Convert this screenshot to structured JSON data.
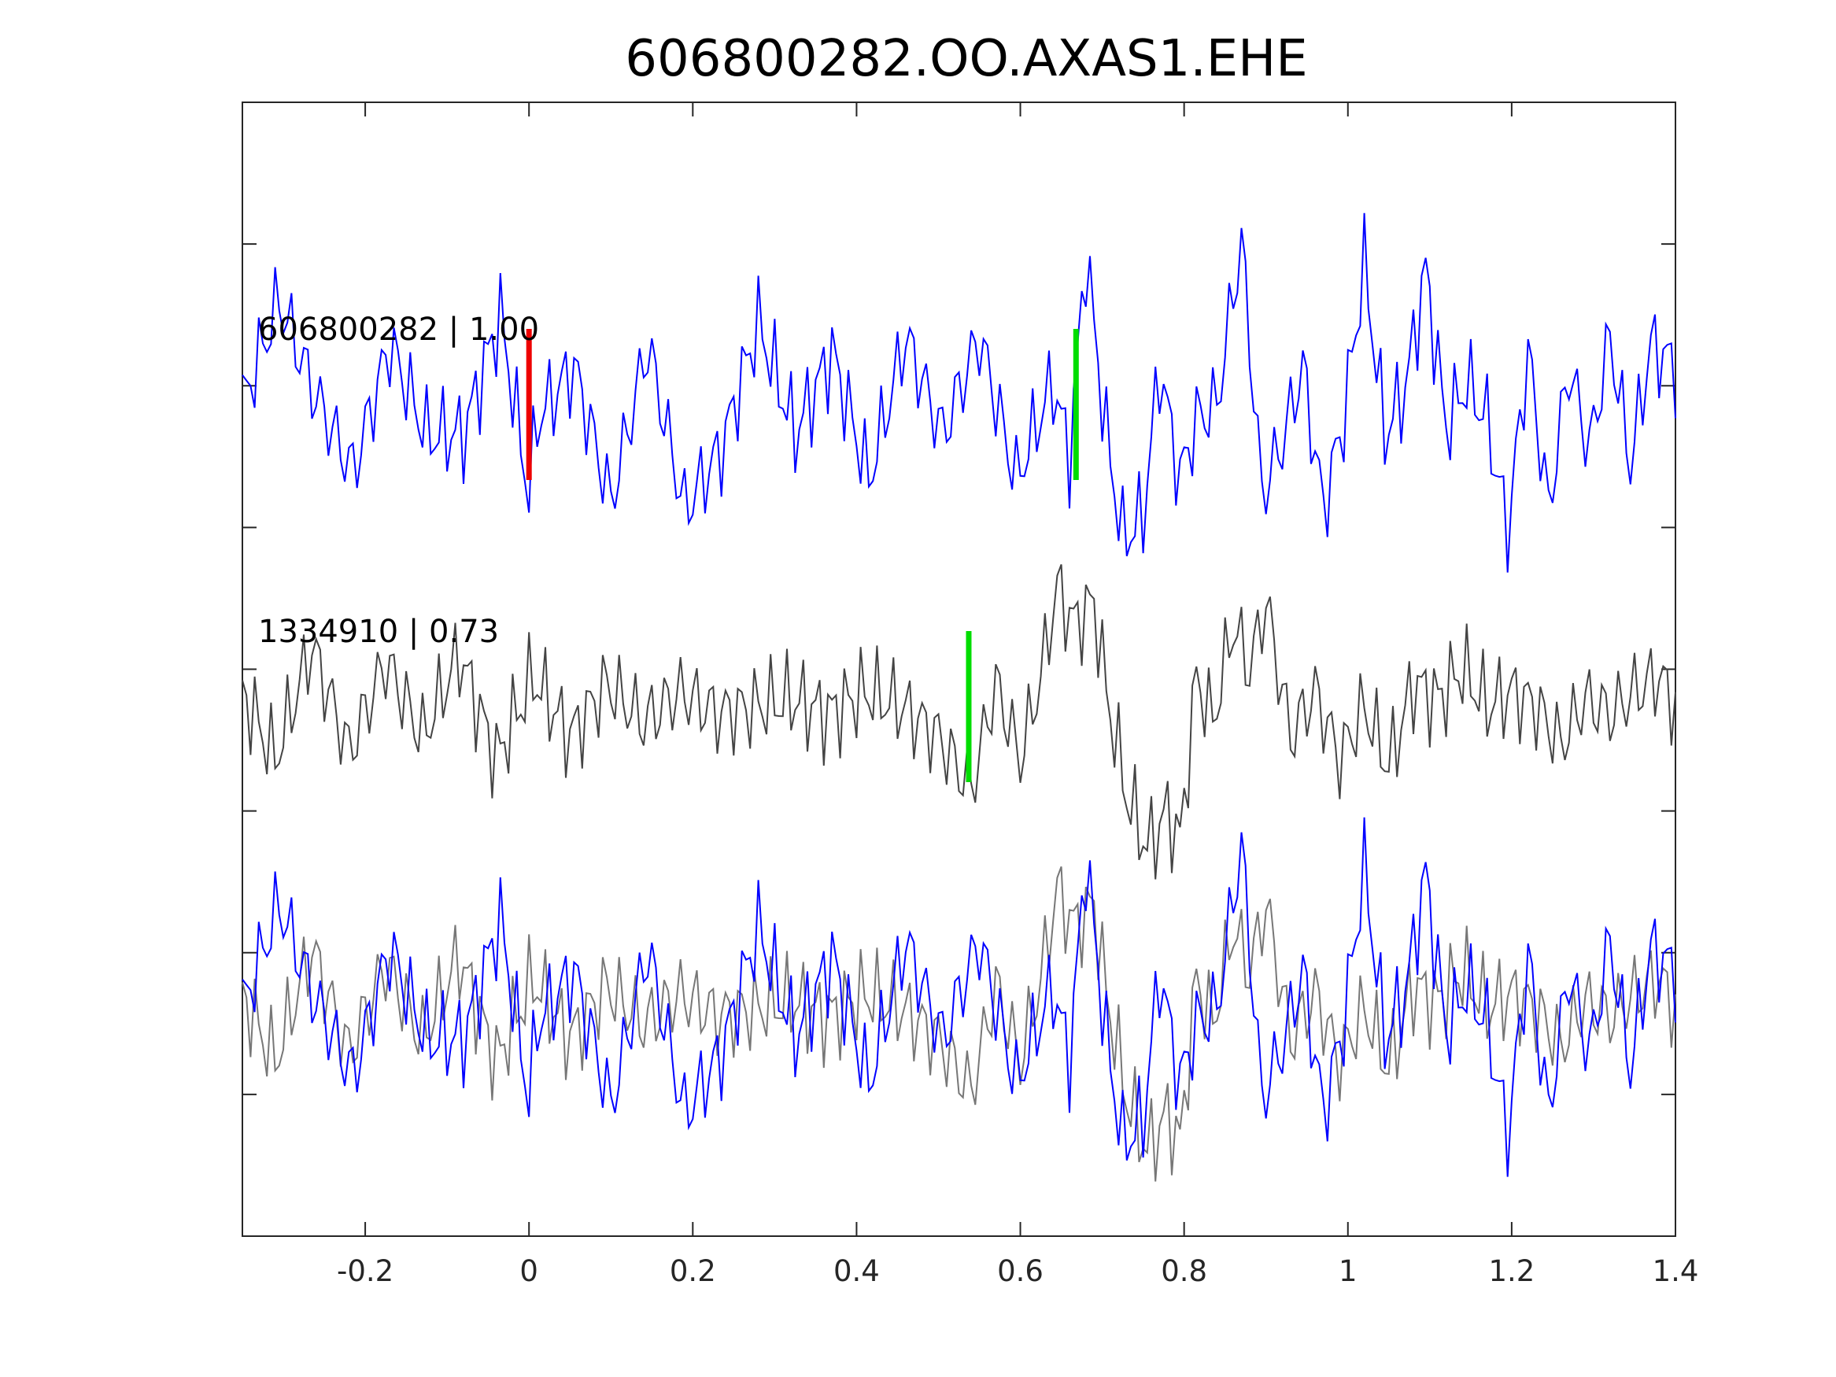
{
  "title": "606800282.OO.AXAS1.EHE",
  "chart_data": {
    "type": "line",
    "title": "606800282.OO.AXAS1.EHE",
    "xlabel": "",
    "ylabel": "",
    "xlim": [
      -0.35,
      1.4
    ],
    "x_ticks": [
      -0.2,
      0,
      0.2,
      0.4,
      0.6,
      0.8,
      1,
      1.2,
      1.4
    ],
    "x_tick_labels": [
      "-0.2",
      "0",
      "0.2",
      "0.4",
      "0.6",
      "0.8",
      "1",
      "1.2",
      "1.4"
    ],
    "y_ticks_count": 7,
    "grid": false,
    "sample_interval": 0.005,
    "series": [
      {
        "name": "606800282",
        "label": "606800282 | 1.00",
        "color": "#0000ff",
        "marker_red_x": 0.0,
        "marker_green_x": 0.668,
        "x": [
          -0.35,
          -0.305,
          -0.26,
          -0.215,
          -0.17,
          -0.125,
          -0.08,
          -0.035,
          0.0,
          0.01,
          0.055,
          0.1,
          0.145,
          0.19,
          0.235,
          0.28,
          0.325,
          0.37,
          0.415,
          0.46,
          0.505,
          0.55,
          0.595,
          0.64,
          0.66,
          0.68,
          0.705,
          0.725,
          0.75,
          0.77,
          0.795,
          0.815,
          0.84,
          0.87,
          0.895,
          0.92,
          0.945,
          0.97,
          0.995,
          1.02,
          1.045,
          1.07,
          1.095,
          1.12,
          1.145,
          1.17,
          1.195,
          1.22,
          1.245,
          1.27,
          1.295,
          1.32,
          1.345,
          1.37,
          1.4
        ],
        "y": [
          0.0,
          0.7,
          0.05,
          -0.45,
          0.4,
          -0.2,
          -0.2,
          0.6,
          -0.6,
          -0.1,
          0.25,
          -0.65,
          0.4,
          -0.7,
          -0.3,
          0.55,
          -0.2,
          0.35,
          -0.5,
          0.45,
          -0.2,
          0.45,
          -0.5,
          0.15,
          -0.35,
          1.0,
          -0.2,
          -0.9,
          -0.75,
          0.25,
          -0.5,
          -0.1,
          0.0,
          1.1,
          -0.6,
          -0.25,
          0.25,
          -0.7,
          -0.1,
          0.95,
          -0.2,
          0.1,
          0.9,
          -0.15,
          0.15,
          -0.1,
          -0.85,
          0.35,
          -0.7,
          0.25,
          -0.3,
          0.45,
          -0.4,
          0.4,
          0.25
        ]
      },
      {
        "name": "1334910",
        "label": "1334910 | 0.73",
        "color": "#555555",
        "marker_green_x": 0.537,
        "x": [
          -0.35,
          -0.31,
          -0.265,
          -0.22,
          -0.175,
          -0.13,
          -0.085,
          -0.04,
          0.005,
          0.05,
          0.095,
          0.14,
          0.185,
          0.23,
          0.275,
          0.32,
          0.365,
          0.41,
          0.455,
          0.5,
          0.54,
          0.57,
          0.6,
          0.625,
          0.645,
          0.665,
          0.69,
          0.705,
          0.73,
          0.755,
          0.78,
          0.795,
          0.815,
          0.835,
          0.86,
          0.88,
          0.9,
          0.93,
          0.96,
          0.99,
          1.02,
          1.05,
          1.08,
          1.11,
          1.14,
          1.17,
          1.2,
          1.23,
          1.26,
          1.29,
          1.32,
          1.35,
          1.38,
          1.4
        ],
        "y": [
          0.1,
          -0.35,
          0.4,
          -0.3,
          0.3,
          -0.2,
          0.35,
          -0.35,
          0.2,
          -0.2,
          0.15,
          -0.1,
          0.1,
          -0.05,
          0.0,
          0.05,
          -0.05,
          0.1,
          0.0,
          -0.2,
          -0.55,
          0.15,
          -0.35,
          0.2,
          0.8,
          0.55,
          0.7,
          0.1,
          -0.6,
          -0.95,
          -0.7,
          -0.9,
          0.2,
          -0.1,
          0.55,
          0.25,
          0.7,
          -0.2,
          0.1,
          -0.35,
          0.0,
          -0.4,
          0.15,
          0.05,
          0.25,
          0.0,
          0.1,
          0.0,
          -0.25,
          0.05,
          -0.05,
          0.1,
          0.2,
          0.0
        ]
      }
    ],
    "overlay": {
      "description_series": [
        "606800282",
        "1334910"
      ],
      "note": ""
    }
  }
}
